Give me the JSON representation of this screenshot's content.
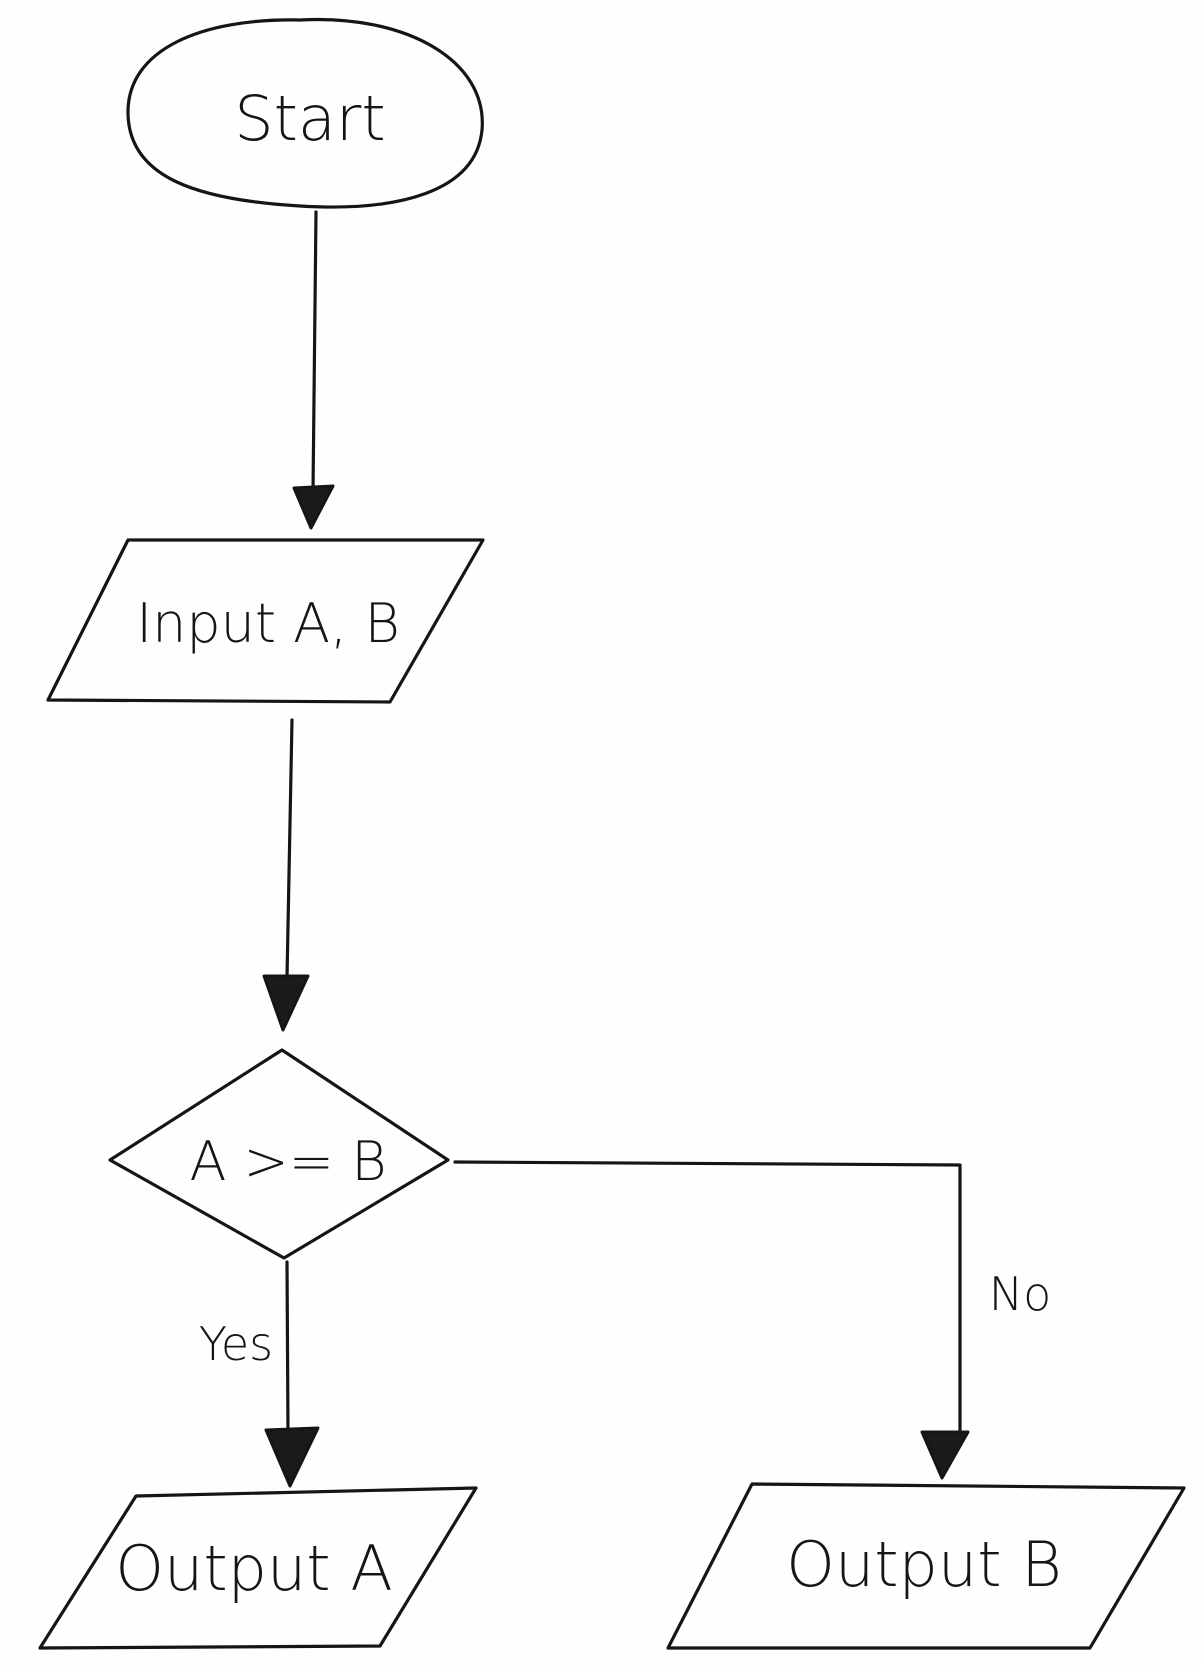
{
  "diagram": {
    "nodes": [
      {
        "id": "start",
        "shape": "oval",
        "label": "Start"
      },
      {
        "id": "input",
        "shape": "parallelogram",
        "label": "Input A, B"
      },
      {
        "id": "decision",
        "shape": "diamond",
        "label": "A >= B"
      },
      {
        "id": "output_a",
        "shape": "parallelogram",
        "label": "Output A"
      },
      {
        "id": "output_b",
        "shape": "parallelogram",
        "label": "Output B"
      }
    ],
    "edges": [
      {
        "from": "start",
        "to": "input",
        "label": ""
      },
      {
        "from": "input",
        "to": "decision",
        "label": ""
      },
      {
        "from": "decision",
        "to": "output_a",
        "label": "Yes"
      },
      {
        "from": "decision",
        "to": "output_b",
        "label": "No"
      }
    ]
  }
}
